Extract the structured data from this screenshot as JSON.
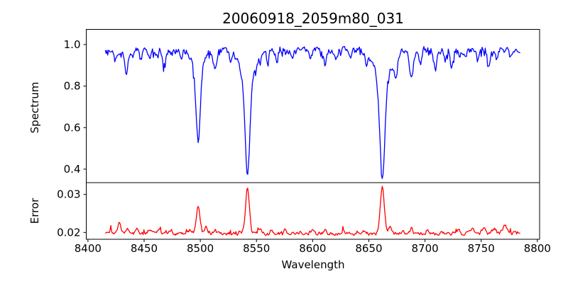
{
  "figure": {
    "title": "20060918_2059m80_031",
    "background": "#ffffff",
    "frame_color": "#000000"
  },
  "chart_data": [
    {
      "type": "line",
      "series_name": "spectrum",
      "title": "20060918_2059m80_031",
      "xlabel": "",
      "ylabel": "Spectrum",
      "color": "#0000ff",
      "grid": false,
      "legend": null,
      "xlim": [
        8398.5,
        8802
      ],
      "ylim": [
        0.335,
        1.073
      ],
      "xticks": {
        "values": [
          8400,
          8450,
          8500,
          8550,
          8600,
          8650,
          8700,
          8750,
          8800
        ],
        "labels": [
          "8400",
          "8450",
          "8500",
          "8550",
          "8600",
          "8650",
          "8700",
          "8750",
          "8800"
        ],
        "show_labels": false
      },
      "yticks": {
        "values": [
          0.4,
          0.6,
          0.8,
          1.0
        ],
        "labels": [
          "0.4",
          "0.6",
          "0.8",
          "1.0"
        ]
      },
      "x_start": 8415.5,
      "x_end": 8784.5,
      "x_step": 0.7,
      "continuum": 0.973,
      "noise": {
        "seed": 918,
        "amplitude": 0.014,
        "correlation": 0.45,
        "spike_probability": 0.12,
        "spike_depth": -0.035
      },
      "absorption_lines": [
        [
          8424,
          0.05,
          1.2
        ],
        [
          8434,
          0.11,
          1.6
        ],
        [
          8440,
          0.04,
          1.0
        ],
        [
          8447,
          0.04,
          1.0
        ],
        [
          8455,
          0.05,
          1.1
        ],
        [
          8462,
          0.04,
          1.0
        ],
        [
          8468,
          0.07,
          1.4
        ],
        [
          8483,
          0.04,
          1.1
        ],
        [
          8498,
          0.33,
          1.8
        ],
        [
          8498,
          0.11,
          4.5
        ],
        [
          8513,
          0.09,
          1.5
        ],
        [
          8527,
          0.04,
          1.1
        ],
        [
          8542,
          0.45,
          2.0
        ],
        [
          8542,
          0.16,
          6.0
        ],
        [
          8560,
          0.05,
          1.1
        ],
        [
          8568,
          0.05,
          1.1
        ],
        [
          8582,
          0.05,
          1.2
        ],
        [
          8598,
          0.05,
          1.1
        ],
        [
          8611,
          0.07,
          1.4
        ],
        [
          8621,
          0.04,
          1.0
        ],
        [
          8634,
          0.04,
          1.0
        ],
        [
          8648,
          0.05,
          1.1
        ],
        [
          8662,
          0.44,
          2.1
        ],
        [
          8662,
          0.17,
          6.5
        ],
        [
          8674,
          0.11,
          1.4
        ],
        [
          8688,
          0.14,
          1.7
        ],
        [
          8696,
          0.06,
          1.1
        ],
        [
          8709,
          0.08,
          1.4
        ],
        [
          8718,
          0.06,
          1.1
        ],
        [
          8724,
          0.08,
          1.3
        ],
        [
          8736,
          0.05,
          1.1
        ],
        [
          8747,
          0.06,
          1.1
        ],
        [
          8757,
          0.08,
          1.4
        ],
        [
          8764,
          0.05,
          1.1
        ],
        [
          8776,
          0.04,
          1.0
        ]
      ]
    },
    {
      "type": "line",
      "series_name": "error",
      "title": "",
      "xlabel": "Wavelength",
      "ylabel": "Error",
      "color": "#ff0000",
      "grid": false,
      "legend": null,
      "xlim": [
        8398.5,
        8802
      ],
      "ylim": [
        0.0182,
        0.0331
      ],
      "xticks": {
        "values": [
          8400,
          8450,
          8500,
          8550,
          8600,
          8650,
          8700,
          8750,
          8800
        ],
        "labels": [
          "8400",
          "8450",
          "8500",
          "8550",
          "8600",
          "8650",
          "8700",
          "8750",
          "8800"
        ],
        "show_labels": true
      },
      "yticks": {
        "values": [
          0.02,
          0.03
        ],
        "labels": [
          "0.02",
          "0.03"
        ]
      },
      "x_start": 8415.5,
      "x_end": 8784.5,
      "x_step": 0.7,
      "baseline": 0.0197,
      "noise": {
        "seed": 2059,
        "amplitude": 0.0004,
        "correlation": 0.45,
        "spike_probability": 0.06,
        "spike_depth": 0.0011
      },
      "emission_peaks": [
        [
          8420,
          0.0008,
          1.5
        ],
        [
          8428,
          0.0028,
          1.3
        ],
        [
          8435,
          0.0012,
          1.2
        ],
        [
          8444,
          0.001,
          1.4
        ],
        [
          8455,
          0.0011,
          1.4
        ],
        [
          8463,
          0.0014,
          1.2
        ],
        [
          8474,
          0.0011,
          1.2
        ],
        [
          8491,
          0.0009,
          1.2
        ],
        [
          8498,
          0.0072,
          1.5
        ],
        [
          8505,
          0.0018,
          1.2
        ],
        [
          8513,
          0.0008,
          1.2
        ],
        [
          8542,
          0.0122,
          1.7
        ],
        [
          8553,
          0.0013,
          1.2
        ],
        [
          8563,
          0.0008,
          1.2
        ],
        [
          8576,
          0.0011,
          1.1
        ],
        [
          8589,
          0.0006,
          1.1
        ],
        [
          8600,
          0.0012,
          0.9
        ],
        [
          8611,
          0.0007,
          1.1
        ],
        [
          8627,
          0.0006,
          1.1
        ],
        [
          8640,
          0.0007,
          1.1
        ],
        [
          8662,
          0.0125,
          1.8
        ],
        [
          8669,
          0.002,
          1.4
        ],
        [
          8680,
          0.0007,
          1.1
        ],
        [
          8688,
          0.0014,
          1.2
        ],
        [
          8702,
          0.0008,
          1.1
        ],
        [
          8715,
          0.0008,
          1.1
        ],
        [
          8730,
          0.001,
          1.2
        ],
        [
          8742,
          0.0014,
          1.4
        ],
        [
          8752,
          0.0016,
          1.4
        ],
        [
          8762,
          0.0013,
          1.3
        ],
        [
          8771,
          0.0021,
          1.9
        ],
        [
          8780,
          0.0007,
          1.1
        ]
      ]
    }
  ]
}
